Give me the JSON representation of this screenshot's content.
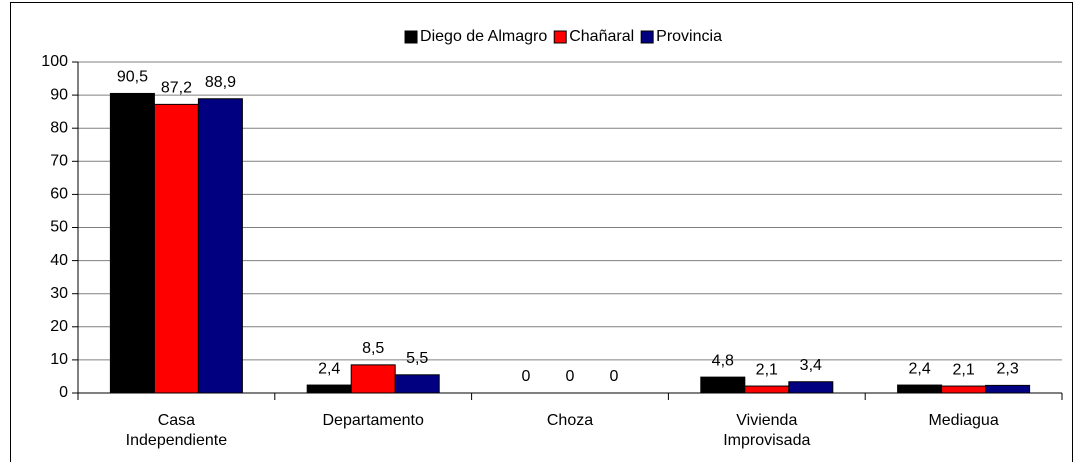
{
  "chart_data": {
    "type": "bar",
    "categories": [
      "Casa Independiente",
      "Departamento",
      "Choza",
      "Vivienda Improvisada",
      "Mediagua"
    ],
    "series": [
      {
        "name": "Diego de Almagro",
        "color": "#000000",
        "values": [
          90.5,
          2.4,
          0,
          4.8,
          2.4
        ],
        "value_labels": [
          "90,5",
          "2,4",
          "0",
          "4,8",
          "2,4"
        ]
      },
      {
        "name": "Chañaral",
        "color": "#ff0000",
        "values": [
          87.2,
          8.5,
          0,
          2.1,
          2.1
        ],
        "value_labels": [
          "87,2",
          "8,5",
          "0",
          "2,1",
          "2,1"
        ]
      },
      {
        "name": "Provincia",
        "color": "#000080",
        "values": [
          88.9,
          5.5,
          0,
          3.4,
          2.3
        ],
        "value_labels": [
          "88,9",
          "5,5",
          "0",
          "3,4",
          "2,3"
        ]
      }
    ],
    "ylim": [
      0,
      100
    ],
    "yticks": [
      0,
      10,
      20,
      30,
      40,
      50,
      60,
      70,
      80,
      90,
      100
    ],
    "grid": true,
    "legend": "top"
  }
}
